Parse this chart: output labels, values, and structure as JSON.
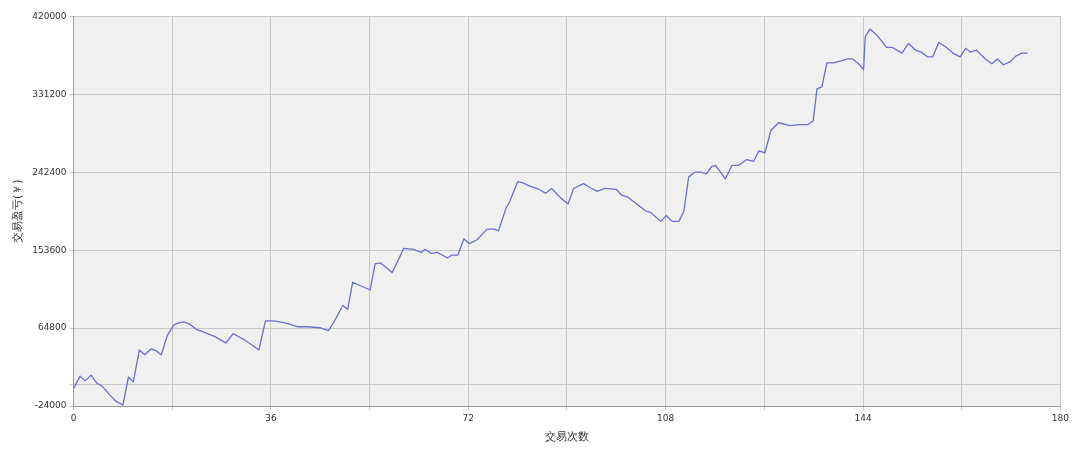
{
  "chart_data": {
    "type": "line",
    "xlabel": "交易次数",
    "ylabel": "交易盈亏(￥)",
    "xlim": [
      0,
      180
    ],
    "xticks": [
      0,
      {
        "value": 18,
        "label": null
      },
      36,
      {
        "value": 54,
        "label": null
      },
      72,
      {
        "value": 90,
        "label": null
      },
      108,
      {
        "value": 126,
        "label": null
      },
      144,
      {
        "value": 162,
        "label": null
      },
      180
    ],
    "ylim": [
      -24000,
      420000
    ],
    "yticks": [
      -24000,
      {
        "value": 0,
        "label": null
      },
      64800,
      153600,
      242400,
      331200,
      420000
    ],
    "grid": true,
    "legend": false,
    "marker": "none",
    "line_style": "solid",
    "series": [
      {
        "color": "#6b6fcf",
        "x": [
          0,
          1.2,
          2.1,
          3.2,
          4.2,
          5.3,
          6.5,
          7.7,
          9,
          10,
          10.9,
          12,
          13,
          14.1,
          15.1,
          16,
          17.1,
          18.3,
          19.2,
          20.1,
          21.1,
          22.5,
          24,
          25.7,
          27.8,
          29.1,
          31,
          32.8,
          33.8,
          35,
          36.5,
          38.6,
          40.9,
          42.6,
          44.9,
          46.5,
          47.6,
          49.1,
          50,
          50.9,
          54.1,
          55,
          56,
          58.1,
          59.4,
          60.2,
          62,
          63.4,
          64.1,
          65.2,
          66.4,
          68.2,
          69,
          70.1,
          71.2,
          72.2,
          73.6,
          75.4,
          76.8,
          77.5,
          78.9,
          79.6,
          81,
          81.9,
          83,
          84.9,
          86.1,
          87.2,
          88.9,
          90.2,
          91.2,
          93,
          94.2,
          95.5,
          96.9,
          99,
          100,
          101.1,
          102.5,
          104.3,
          105.3,
          107.1,
          108.1,
          109.2,
          110.4,
          111.3,
          112.2,
          113.4,
          114.5,
          115.4,
          116.4,
          117.1,
          118.9,
          120.1,
          121.3,
          122.8,
          124,
          125,
          126.1,
          127.2,
          128.6,
          130.7,
          132.4,
          133.9,
          134.9,
          135.6,
          136.5,
          137.4,
          138.6,
          140,
          141.2,
          142.1,
          143.4,
          144.1,
          144.4,
          145.3,
          146.6,
          148.3,
          149.3,
          151.1,
          152.3,
          153.6,
          154.6,
          155.8,
          156.7,
          157.8,
          158.9,
          160.4,
          161.7,
          162.7,
          163.6,
          164.7,
          166.3,
          167.5,
          168.5,
          169.6,
          170.8,
          171.9,
          173,
          174
        ],
        "values": [
          -4000,
          10000,
          4600,
          11200,
          2400,
          -2000,
          -10800,
          -18500,
          -22900,
          9000,
          3500,
          39900,
          34400,
          41000,
          38800,
          34400,
          56400,
          68500,
          70700,
          71800,
          69600,
          63000,
          59700,
          55300,
          47600,
          58600,
          52000,
          44300,
          39900,
          72900,
          73100,
          70700,
          66300,
          66300,
          65200,
          61900,
          72900,
          90600,
          86200,
          117000,
          108200,
          138000,
          139000,
          128000,
          144600,
          155600,
          154500,
          151000,
          154500,
          150000,
          151000,
          144600,
          148000,
          148000,
          166600,
          161000,
          165500,
          177600,
          177600,
          175400,
          201800,
          209600,
          231600,
          230500,
          227200,
          222800,
          218400,
          223900,
          212900,
          206300,
          223900,
          229400,
          225000,
          220600,
          223900,
          222800,
          216200,
          214000,
          207400,
          198500,
          196300,
          186400,
          193000,
          186400,
          186400,
          197400,
          237100,
          242600,
          242600,
          240400,
          249200,
          250300,
          234900,
          250300,
          250300,
          256900,
          254700,
          266800,
          264600,
          290000,
          298800,
          295500,
          296600,
          296600,
          301000,
          337400,
          339600,
          367100,
          367100,
          369300,
          371500,
          371500,
          364900,
          359400,
          397000,
          405700,
          398000,
          384800,
          384800,
          378200,
          389200,
          381500,
          379300,
          373800,
          373800,
          390300,
          385900,
          378200,
          373800,
          383700,
          379300,
          381500,
          371500,
          366000,
          371500,
          364900,
          368200,
          374900,
          378200,
          378200
        ]
      }
    ]
  }
}
